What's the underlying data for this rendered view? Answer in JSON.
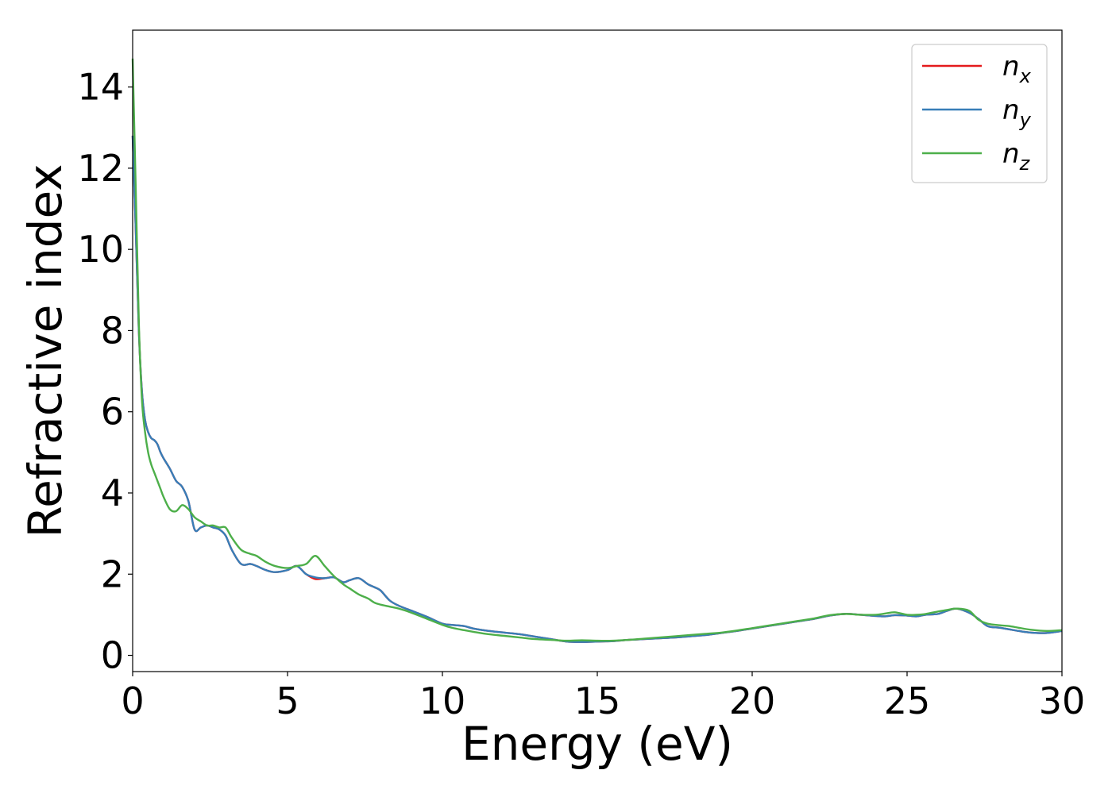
{
  "chart_data": {
    "type": "line",
    "title": "",
    "xlabel": "Energy (eV)",
    "ylabel": "Refractive index",
    "xlim": [
      0,
      30
    ],
    "ylim": [
      -0.4,
      15.4
    ],
    "xticks": [
      0,
      5,
      10,
      15,
      20,
      25,
      30
    ],
    "yticks": [
      0,
      2,
      4,
      6,
      8,
      10,
      12,
      14
    ],
    "grid": false,
    "legend_position": "top-right",
    "x": [
      0,
      0.1,
      0.2,
      0.3,
      0.4,
      0.5,
      0.6,
      0.7,
      0.8,
      0.9,
      1.0,
      1.2,
      1.4,
      1.6,
      1.8,
      2.0,
      2.2,
      2.4,
      2.6,
      2.8,
      3.0,
      3.2,
      3.5,
      3.8,
      4.0,
      4.3,
      4.6,
      5.0,
      5.3,
      5.6,
      5.9,
      6.2,
      6.5,
      6.8,
      7.0,
      7.3,
      7.6,
      7.8,
      8.0,
      8.3,
      8.6,
      9.0,
      9.5,
      10.0,
      10.3,
      10.7,
      11.0,
      11.5,
      12.0,
      12.5,
      13.0,
      13.5,
      14.0,
      14.5,
      15.0,
      15.5,
      16.0,
      16.5,
      17.0,
      17.5,
      18.0,
      18.5,
      19.0,
      19.5,
      20.0,
      20.5,
      21.0,
      21.5,
      22.0,
      22.5,
      23.0,
      23.5,
      24.0,
      24.3,
      24.6,
      25.0,
      25.3,
      25.6,
      26.0,
      26.3,
      26.6,
      27.0,
      27.3,
      27.6,
      28.0,
      28.3,
      28.6,
      29.0,
      29.5,
      30.0
    ],
    "series": [
      {
        "name": "n_x",
        "color": "#e41a1c",
        "values": [
          12.8,
          10.5,
          8.0,
          6.5,
          5.8,
          5.5,
          5.35,
          5.3,
          5.2,
          5.0,
          4.85,
          4.6,
          4.3,
          4.15,
          3.8,
          3.1,
          3.15,
          3.2,
          3.15,
          3.1,
          2.95,
          2.6,
          2.25,
          2.25,
          2.2,
          2.1,
          2.05,
          2.1,
          2.2,
          2.0,
          1.88,
          1.9,
          1.92,
          1.8,
          1.85,
          1.9,
          1.75,
          1.68,
          1.6,
          1.35,
          1.22,
          1.1,
          0.95,
          0.78,
          0.75,
          0.72,
          0.66,
          0.6,
          0.56,
          0.52,
          0.46,
          0.4,
          0.34,
          0.33,
          0.34,
          0.35,
          0.38,
          0.4,
          0.42,
          0.44,
          0.47,
          0.5,
          0.55,
          0.6,
          0.66,
          0.72,
          0.78,
          0.84,
          0.9,
          0.98,
          1.02,
          1.0,
          0.97,
          0.96,
          0.99,
          0.98,
          0.96,
          1.0,
          1.02,
          1.1,
          1.15,
          1.05,
          0.9,
          0.72,
          0.68,
          0.64,
          0.6,
          0.56,
          0.55,
          0.6
        ]
      },
      {
        "name": "n_y",
        "color": "#377eb8",
        "values": [
          12.8,
          10.5,
          8.0,
          6.5,
          5.8,
          5.5,
          5.35,
          5.3,
          5.2,
          5.0,
          4.85,
          4.6,
          4.3,
          4.15,
          3.8,
          3.1,
          3.15,
          3.2,
          3.15,
          3.1,
          2.95,
          2.6,
          2.25,
          2.25,
          2.2,
          2.1,
          2.05,
          2.1,
          2.2,
          2.0,
          1.92,
          1.9,
          1.92,
          1.8,
          1.85,
          1.9,
          1.75,
          1.68,
          1.6,
          1.35,
          1.22,
          1.1,
          0.95,
          0.78,
          0.75,
          0.72,
          0.66,
          0.6,
          0.56,
          0.52,
          0.46,
          0.4,
          0.34,
          0.33,
          0.34,
          0.35,
          0.38,
          0.4,
          0.42,
          0.44,
          0.47,
          0.5,
          0.55,
          0.6,
          0.66,
          0.72,
          0.78,
          0.84,
          0.9,
          0.98,
          1.02,
          1.0,
          0.97,
          0.96,
          0.99,
          0.98,
          0.96,
          1.0,
          1.02,
          1.1,
          1.15,
          1.05,
          0.9,
          0.72,
          0.68,
          0.64,
          0.6,
          0.56,
          0.55,
          0.6
        ]
      },
      {
        "name": "n_z",
        "color": "#4daf4a",
        "values": [
          14.7,
          11.5,
          8.2,
          6.3,
          5.5,
          5.0,
          4.7,
          4.5,
          4.3,
          4.1,
          3.9,
          3.6,
          3.55,
          3.7,
          3.6,
          3.4,
          3.3,
          3.2,
          3.2,
          3.15,
          3.15,
          2.9,
          2.6,
          2.5,
          2.45,
          2.3,
          2.2,
          2.15,
          2.2,
          2.25,
          2.45,
          2.2,
          1.95,
          1.75,
          1.65,
          1.5,
          1.4,
          1.3,
          1.25,
          1.2,
          1.15,
          1.05,
          0.9,
          0.75,
          0.68,
          0.62,
          0.58,
          0.52,
          0.48,
          0.44,
          0.4,
          0.38,
          0.36,
          0.37,
          0.36,
          0.36,
          0.38,
          0.41,
          0.44,
          0.47,
          0.5,
          0.53,
          0.56,
          0.61,
          0.67,
          0.73,
          0.79,
          0.85,
          0.91,
          0.99,
          1.02,
          1.0,
          1.0,
          1.03,
          1.06,
          1.0,
          1.0,
          1.02,
          1.08,
          1.12,
          1.15,
          1.1,
          0.88,
          0.78,
          0.74,
          0.72,
          0.68,
          0.63,
          0.6,
          0.62
        ]
      }
    ],
    "legend": [
      {
        "base": "n",
        "sub": "x",
        "color": "#e41a1c"
      },
      {
        "base": "n",
        "sub": "y",
        "color": "#377eb8"
      },
      {
        "base": "n",
        "sub": "z",
        "color": "#4daf4a"
      }
    ]
  }
}
